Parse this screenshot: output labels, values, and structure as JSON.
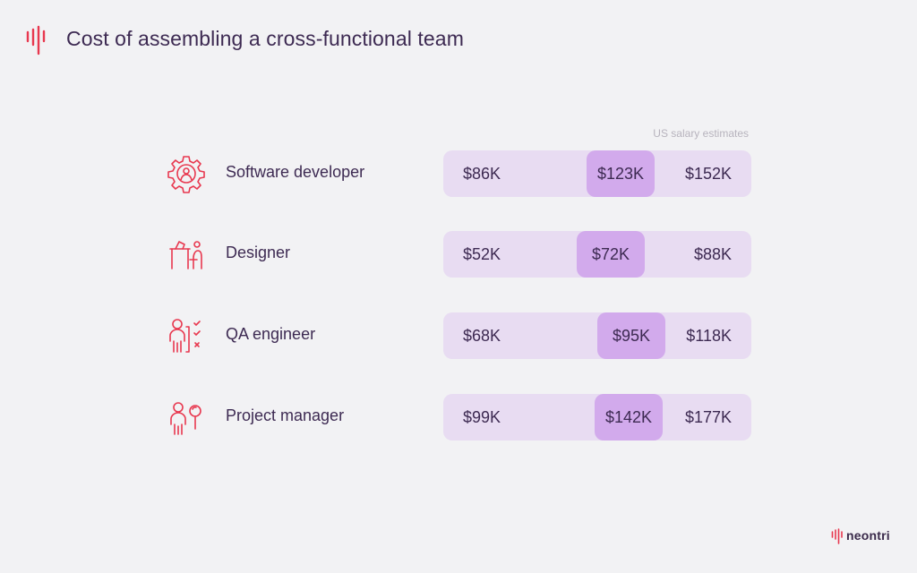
{
  "title": "Cost of assembling a cross-functional team",
  "note": "US salary estimates",
  "brand": {
    "name": "neontri",
    "color": "#e8384f"
  },
  "colors": {
    "bar_bg": "#e8dcf2",
    "mid_bg": "#d2aaec",
    "icon": "#e8384f"
  },
  "rows": [
    {
      "role": "Software developer",
      "icon": "gear-person-icon",
      "low": "$86K",
      "mid": "$123K",
      "high": "$152K"
    },
    {
      "role": "Designer",
      "icon": "designer-desk-icon",
      "low": "$52K",
      "mid": "$72K",
      "high": "$88K"
    },
    {
      "role": "QA engineer",
      "icon": "qa-checklist-icon",
      "low": "$68K",
      "mid": "$95K",
      "high": "$118K"
    },
    {
      "role": "Project manager",
      "icon": "manager-magnifier-icon",
      "low": "$99K",
      "mid": "$142K",
      "high": "$177K"
    }
  ],
  "chart_data": {
    "type": "table",
    "title": "Cost of assembling a cross-functional team",
    "subtitle": "US salary estimates",
    "categories": [
      "Software developer",
      "Designer",
      "QA engineer",
      "Project manager"
    ],
    "series": [
      {
        "values": [
          86,
          52,
          68,
          99
        ]
      },
      {
        "values": [
          123,
          72,
          95,
          142
        ]
      },
      {
        "values": [
          152,
          88,
          118,
          177
        ]
      }
    ]
  }
}
